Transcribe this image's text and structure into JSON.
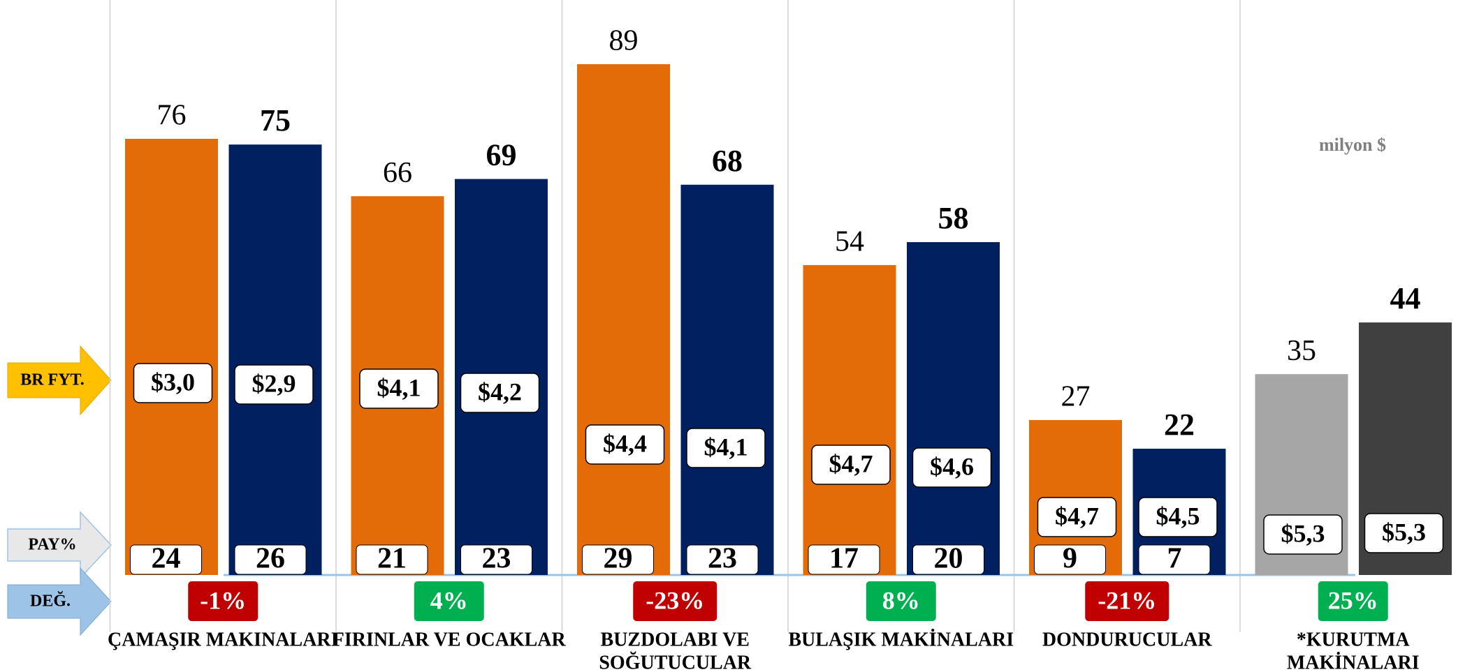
{
  "chart_data": {
    "type": "bar",
    "note": "milyon $",
    "row_labels": {
      "price": "BR FYT.",
      "share": "PAY%",
      "change": "DEĞ."
    },
    "categories": [
      [
        "ÇAMAŞIR MAKINALARI"
      ],
      [
        "FIRINLAR VE OCAKLAR"
      ],
      [
        "BUZDOLABI VE",
        "SOĞUTUCULAR"
      ],
      [
        "BULAŞIK MAKİNALARI"
      ],
      [
        "DONDURUCULAR"
      ],
      [
        "*KURUTMA",
        "MAKİNALARI"
      ]
    ],
    "series": [
      {
        "colors": [
          "#e36c09",
          "#e36c09",
          "#e36c09",
          "#e36c09",
          "#e36c09",
          "#a6a6a6"
        ],
        "values": [
          76,
          66,
          89,
          54,
          27,
          35
        ],
        "price_labels": [
          "$3,0",
          "$4,1",
          "$4,4",
          "$4,7",
          "$4,7",
          "$5,3"
        ],
        "share": [
          24,
          21,
          29,
          17,
          9,
          null
        ]
      },
      {
        "colors": [
          "#002060",
          "#002060",
          "#002060",
          "#002060",
          "#002060",
          "#404040"
        ],
        "values": [
          75,
          69,
          68,
          58,
          22,
          44
        ],
        "price_labels": [
          "$2,9",
          "$4,2",
          "$4,1",
          "$4,6",
          "$4,5",
          "$5,3"
        ],
        "share": [
          26,
          23,
          23,
          20,
          7,
          null
        ]
      }
    ],
    "change": [
      -1,
      4,
      -23,
      8,
      -21,
      25
    ],
    "change_labels": [
      "-1%",
      "4%",
      "-23%",
      "8%",
      "-21%",
      "25%"
    ]
  }
}
